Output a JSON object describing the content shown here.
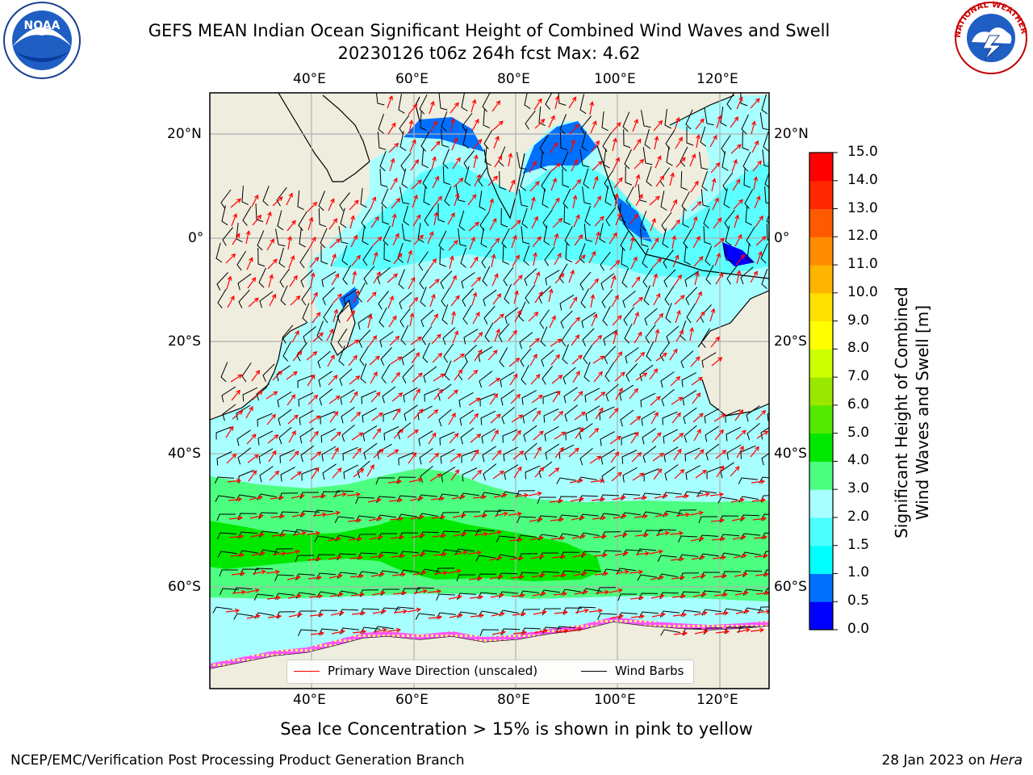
{
  "header": {
    "title_line1": "GEFS MEAN Indian Ocean Significant Height of Combined Wind Waves and Swell",
    "title_line2": "20230126 t06z 264h fcst   Max: 4.62"
  },
  "logos": {
    "left": {
      "name": "noaa-logo-icon",
      "text": "NOAA"
    },
    "right": {
      "name": "nws-logo-icon",
      "text": "NATIONAL WEATHER SERVICE"
    }
  },
  "map": {
    "lon_ticks_top": [
      "40°E",
      "60°E",
      "80°E",
      "100°E",
      "120°E"
    ],
    "lon_ticks_bottom": [
      "40°E",
      "60°E",
      "80°E",
      "100°E",
      "120°E"
    ],
    "lat_ticks_left": [
      "20°N",
      "0°",
      "20°S",
      "40°S",
      "60°S"
    ],
    "lat_ticks_right": [
      "20°N",
      "0°",
      "20°S",
      "40°S",
      "60°S"
    ],
    "gridlines": true,
    "colors": {
      "land": "#efedde",
      "ocean_low": "#a8ffff",
      "coast": "#000000",
      "arrows": "#ff0000",
      "barbs": "#000000"
    }
  },
  "legend": {
    "placement": "bottom-center",
    "items": [
      {
        "label": "Primary Wave Direction (unscaled)",
        "color": "#ff0000"
      },
      {
        "label": "Wind Barbs",
        "color": "#000000"
      }
    ]
  },
  "colorbar": {
    "label_line1": "Significant Height of Combined",
    "label_line2": "Wind Waves and Swell [m]",
    "ticks": [
      "0.0",
      "0.5",
      "1.0",
      "1.5",
      "2.0",
      "3.0",
      "4.0",
      "5.0",
      "6.0",
      "7.0",
      "8.0",
      "9.0",
      "10.0",
      "11.0",
      "12.0",
      "13.0",
      "14.0",
      "15.0"
    ],
    "colors": [
      "#0000ff",
      "#0070ff",
      "#00ffff",
      "#4dffff",
      "#a8ffff",
      "#4dff80",
      "#00e800",
      "#55e800",
      "#9ae800",
      "#cdff00",
      "#ffff00",
      "#ffe000",
      "#ffb400",
      "#ff8c00",
      "#ff5a00",
      "#ff2800",
      "#ff0000"
    ]
  },
  "subtitle": "Sea Ice Concentration > 15% is shown in pink to yellow",
  "footer": {
    "left": "NCEP/EMC/Verification Post Processing Product Generation Branch",
    "right_prefix": "28 Jan 2023 on ",
    "right_host": "Hera"
  }
}
